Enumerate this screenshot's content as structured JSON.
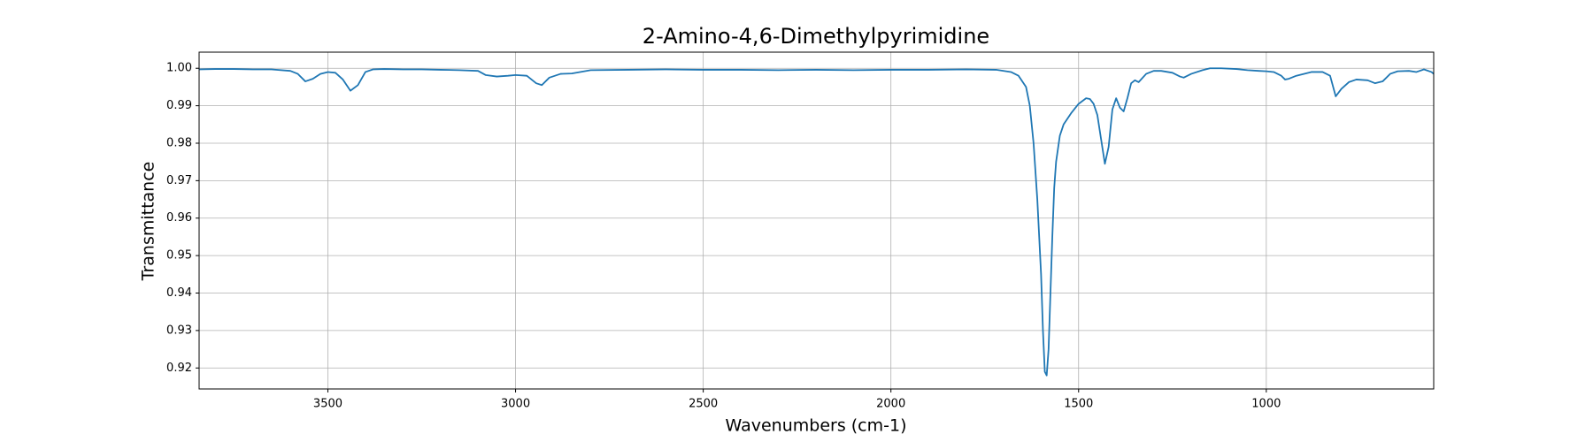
{
  "chart_data": {
    "type": "line",
    "title": "2-Amino-4,6-Dimethylpyrimidine",
    "x_label": "Wavenumbers (cm-1)",
    "y_label": "Transmittance",
    "color": "#1f77b4",
    "grid": true,
    "xlim": [
      3843,
      554
    ],
    "ylim": [
      0.9144,
      1.0043
    ],
    "xticks": [
      3500,
      3000,
      2500,
      2000,
      1500,
      1000
    ],
    "yticks": [
      0.92,
      0.93,
      0.94,
      0.95,
      0.96,
      0.97,
      0.98,
      0.99,
      {
        "value": 1,
        "label": "1.00"
      }
    ],
    "x": [
      3843,
      3800,
      3750,
      3700,
      3650,
      3600,
      3580,
      3560,
      3540,
      3520,
      3500,
      3480,
      3460,
      3440,
      3420,
      3400,
      3380,
      3350,
      3300,
      3250,
      3200,
      3150,
      3100,
      3080,
      3050,
      3020,
      3000,
      2970,
      2945,
      2930,
      2910,
      2880,
      2850,
      2800,
      2700,
      2600,
      2500,
      2400,
      2300,
      2200,
      2100,
      2000,
      1900,
      1800,
      1720,
      1680,
      1660,
      1640,
      1630,
      1620,
      1610,
      1600,
      1595,
      1590,
      1585,
      1580,
      1575,
      1570,
      1565,
      1560,
      1550,
      1540,
      1520,
      1500,
      1480,
      1470,
      1460,
      1450,
      1440,
      1430,
      1420,
      1410,
      1400,
      1390,
      1380,
      1370,
      1360,
      1350,
      1340,
      1320,
      1300,
      1280,
      1250,
      1230,
      1220,
      1200,
      1170,
      1150,
      1120,
      1080,
      1050,
      1020,
      1000,
      980,
      960,
      950,
      940,
      920,
      900,
      880,
      850,
      830,
      815,
      800,
      780,
      760,
      730,
      710,
      690,
      670,
      650,
      620,
      600,
      580,
      560,
      554
    ],
    "values": [
      0.9997,
      0.9998,
      0.9998,
      0.9997,
      0.9997,
      0.9993,
      0.9985,
      0.9965,
      0.9972,
      0.9985,
      0.999,
      0.9988,
      0.997,
      0.994,
      0.9955,
      0.999,
      0.9997,
      0.9998,
      0.9997,
      0.9997,
      0.9996,
      0.9995,
      0.9993,
      0.9982,
      0.9978,
      0.998,
      0.9982,
      0.998,
      0.996,
      0.9955,
      0.9975,
      0.9985,
      0.9986,
      0.9995,
      0.9996,
      0.9997,
      0.9996,
      0.9996,
      0.9995,
      0.9996,
      0.9995,
      0.9996,
      0.9996,
      0.9997,
      0.9996,
      0.999,
      0.998,
      0.995,
      0.99,
      0.98,
      0.965,
      0.945,
      0.93,
      0.919,
      0.918,
      0.925,
      0.94,
      0.955,
      0.968,
      0.975,
      0.982,
      0.985,
      0.988,
      0.9905,
      0.992,
      0.9918,
      0.9905,
      0.9875,
      0.981,
      0.9745,
      0.979,
      0.989,
      0.992,
      0.9895,
      0.9885,
      0.992,
      0.996,
      0.9968,
      0.9963,
      0.9985,
      0.9993,
      0.9993,
      0.9988,
      0.9978,
      0.9975,
      0.9985,
      0.9995,
      1.0,
      1.0,
      0.9998,
      0.9995,
      0.9993,
      0.9992,
      0.999,
      0.998,
      0.997,
      0.9972,
      0.998,
      0.9985,
      0.999,
      0.999,
      0.998,
      0.9925,
      0.9945,
      0.9963,
      0.997,
      0.9968,
      0.996,
      0.9965,
      0.9985,
      0.9992,
      0.9993,
      0.999,
      0.9997,
      0.999,
      0.9985
    ]
  }
}
